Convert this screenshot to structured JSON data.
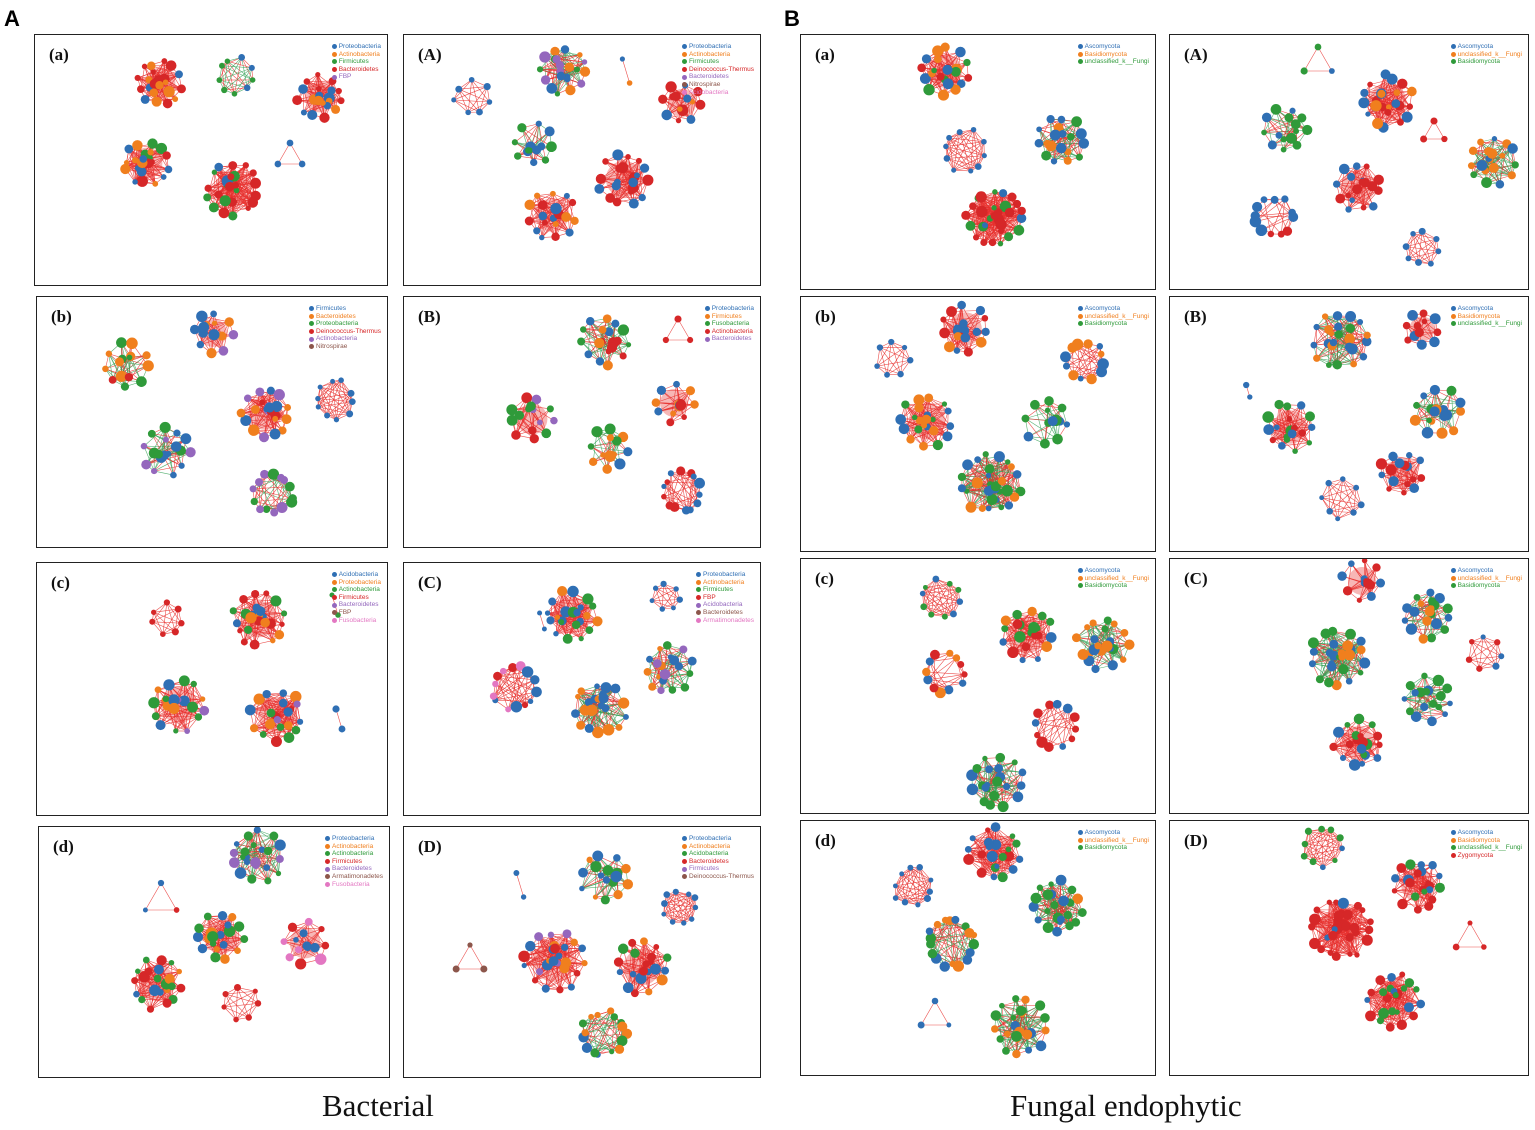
{
  "section_labels": {
    "left": "A",
    "right": "B"
  },
  "captions": {
    "left": "Bacterial",
    "right": "Fungal endophytic"
  },
  "phylum_colors": {
    "Proteobacteria": "#2f6fb4",
    "Actinobacteria": "#f07f1e",
    "Firmicutes": "#2f9a3a",
    "Bacteroidetes": "#d62728",
    "FBP": "#d62728",
    "Deinococcus-Thermus": "#d62728",
    "Acidobacteria": "#2f6fb4",
    "Nitrospirae": "#8c564b",
    "Fusobacteria": "#e377c2",
    "Armatimonadetes": "#8c564b",
    "Ascomycota": "#2f6fb4",
    "Basidiomycota": "#f07f1e",
    "unclassified_k__Fungi": "#2f9a3a",
    "Zygomycota": "#d62728"
  },
  "bacterial_panels": [
    {
      "label": "(a)",
      "legend": [
        {
          "name": "Proteobacteria",
          "color": "#2f6fb4"
        },
        {
          "name": "Actinobacteria",
          "color": "#f07f1e"
        },
        {
          "name": "Firmicutes",
          "color": "#2f9a3a"
        },
        {
          "name": "Bacteroidetes",
          "color": "#d62728"
        },
        {
          "name": "FBP",
          "color": "#9467bd"
        }
      ]
    },
    {
      "label": "(A)",
      "legend": [
        {
          "name": "Proteobacteria",
          "color": "#2f6fb4"
        },
        {
          "name": "Actinobacteria",
          "color": "#f07f1e"
        },
        {
          "name": "Firmicutes",
          "color": "#2f9a3a"
        },
        {
          "name": "Deinococcus-Thermus",
          "color": "#d62728"
        },
        {
          "name": "Bacteroidetes",
          "color": "#9467bd"
        },
        {
          "name": "Nitrospirae",
          "color": "#8c564b"
        },
        {
          "name": "Acidobacteria",
          "color": "#e377c2"
        }
      ]
    },
    {
      "label": "(b)",
      "legend": [
        {
          "name": "Firmicutes",
          "color": "#2f6fb4"
        },
        {
          "name": "Bacteroidetes",
          "color": "#f07f1e"
        },
        {
          "name": "Proteobacteria",
          "color": "#2f9a3a"
        },
        {
          "name": "Deinococcus-Thermus",
          "color": "#d62728"
        },
        {
          "name": "Actinobacteria",
          "color": "#9467bd"
        },
        {
          "name": "Nitrospirae",
          "color": "#8c564b"
        }
      ]
    },
    {
      "label": "(B)",
      "legend": [
        {
          "name": "Proteobacteria",
          "color": "#2f6fb4"
        },
        {
          "name": "Firmicutes",
          "color": "#f07f1e"
        },
        {
          "name": "Fusobacteria",
          "color": "#2f9a3a"
        },
        {
          "name": "Actinobacteria",
          "color": "#d62728"
        },
        {
          "name": "Bacteroidetes",
          "color": "#9467bd"
        }
      ]
    },
    {
      "label": "(c)",
      "legend": [
        {
          "name": "Acidobacteria",
          "color": "#2f6fb4"
        },
        {
          "name": "Proteobacteria",
          "color": "#f07f1e"
        },
        {
          "name": "Actinobacteria",
          "color": "#2f9a3a"
        },
        {
          "name": "Firmicutes",
          "color": "#d62728"
        },
        {
          "name": "Bacteroidetes",
          "color": "#9467bd"
        },
        {
          "name": "FBP",
          "color": "#8c564b"
        },
        {
          "name": "Fusobacteria",
          "color": "#e377c2"
        }
      ]
    },
    {
      "label": "(C)",
      "legend": [
        {
          "name": "Proteobacteria",
          "color": "#2f6fb4"
        },
        {
          "name": "Actinobacteria",
          "color": "#f07f1e"
        },
        {
          "name": "Firmicutes",
          "color": "#2f9a3a"
        },
        {
          "name": "FBP",
          "color": "#d62728"
        },
        {
          "name": "Acidobacteria",
          "color": "#9467bd"
        },
        {
          "name": "Bacteroidetes",
          "color": "#8c564b"
        },
        {
          "name": "Armatimonadetes",
          "color": "#e377c2"
        }
      ]
    },
    {
      "label": "(d)",
      "legend": [
        {
          "name": "Proteobacteria",
          "color": "#2f6fb4"
        },
        {
          "name": "Actinobacteria",
          "color": "#f07f1e"
        },
        {
          "name": "Actinobacteria",
          "color": "#2f9a3a"
        },
        {
          "name": "Firmicutes",
          "color": "#d62728"
        },
        {
          "name": "Bacteroidetes",
          "color": "#9467bd"
        },
        {
          "name": "Armatimonadetes",
          "color": "#8c564b"
        },
        {
          "name": "Fusobacteria",
          "color": "#e377c2"
        }
      ]
    },
    {
      "label": "(D)",
      "legend": [
        {
          "name": "Proteobacteria",
          "color": "#2f6fb4"
        },
        {
          "name": "Actinobacteria",
          "color": "#f07f1e"
        },
        {
          "name": "Acidobacteria",
          "color": "#2f9a3a"
        },
        {
          "name": "Bacteroidetes",
          "color": "#d62728"
        },
        {
          "name": "Firmicutes",
          "color": "#9467bd"
        },
        {
          "name": "Deinococcus-Thermus",
          "color": "#8c564b"
        }
      ]
    }
  ],
  "fungal_panels": [
    {
      "label": "(a)",
      "legend": [
        {
          "name": "Ascomycota",
          "color": "#2f6fb4"
        },
        {
          "name": "Basidiomycota",
          "color": "#f07f1e"
        },
        {
          "name": "unclassified_k__Fungi",
          "color": "#2f9a3a"
        }
      ]
    },
    {
      "label": "(A)",
      "legend": [
        {
          "name": "Ascomycota",
          "color": "#2f6fb4"
        },
        {
          "name": "unclassified_k__Fungi",
          "color": "#f07f1e"
        },
        {
          "name": "Basidiomycota",
          "color": "#2f9a3a"
        }
      ]
    },
    {
      "label": "(b)",
      "legend": [
        {
          "name": "Ascomycota",
          "color": "#2f6fb4"
        },
        {
          "name": "unclassified_k__Fungi",
          "color": "#f07f1e"
        },
        {
          "name": "Basidiomycota",
          "color": "#2f9a3a"
        }
      ]
    },
    {
      "label": "(B)",
      "legend": [
        {
          "name": "Ascomycota",
          "color": "#2f6fb4"
        },
        {
          "name": "Basidiomycota",
          "color": "#f07f1e"
        },
        {
          "name": "unclassified_k__Fungi",
          "color": "#2f9a3a"
        }
      ]
    },
    {
      "label": "(c)",
      "legend": [
        {
          "name": "Ascomycota",
          "color": "#2f6fb4"
        },
        {
          "name": "unclassified_k__Fungi",
          "color": "#f07f1e"
        },
        {
          "name": "Basidiomycota",
          "color": "#2f9a3a"
        }
      ]
    },
    {
      "label": "(C)",
      "legend": [
        {
          "name": "Ascomycota",
          "color": "#2f6fb4"
        },
        {
          "name": "unclassified_k__Fungi",
          "color": "#f07f1e"
        },
        {
          "name": "Basidiomycota",
          "color": "#2f9a3a"
        }
      ]
    },
    {
      "label": "(d)",
      "legend": [
        {
          "name": "Ascomycota",
          "color": "#2f6fb4"
        },
        {
          "name": "unclassified_k__Fungi",
          "color": "#f07f1e"
        },
        {
          "name": "Basidiomycota",
          "color": "#2f9a3a"
        }
      ]
    },
    {
      "label": "(D)",
      "legend": [
        {
          "name": "Ascomycota",
          "color": "#2f6fb4"
        },
        {
          "name": "Basidiomycota",
          "color": "#f07f1e"
        },
        {
          "name": "unclassified_k__Fungi",
          "color": "#2f9a3a"
        },
        {
          "name": "Zygomycota",
          "color": "#d62728"
        }
      ]
    }
  ]
}
